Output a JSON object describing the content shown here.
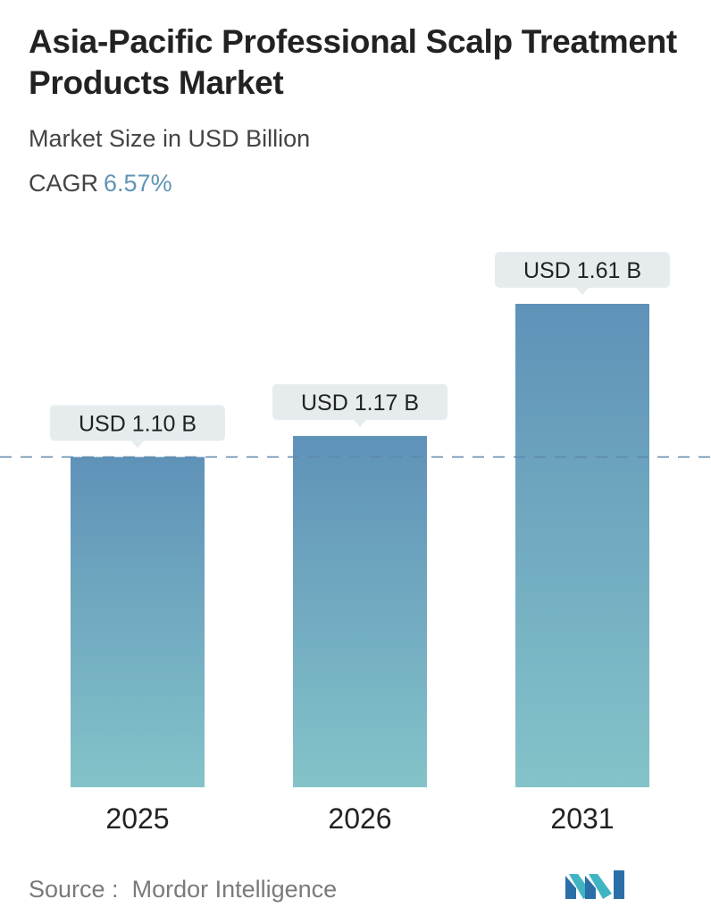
{
  "title": "Asia-Pacific Professional Scalp Treatment Products Market",
  "subtitle": "Market Size in USD Billion",
  "cagr": {
    "label": "CAGR",
    "value": "6.57%"
  },
  "colors": {
    "bar_top": "#5f92b8",
    "bar_bottom": "#84c3c9",
    "callout_bg": "#e6ecee",
    "reference_line": "#5d89ad"
  },
  "chart_data": {
    "type": "bar",
    "categories": [
      "2025",
      "2026",
      "2031"
    ],
    "values": [
      1.1,
      1.17,
      1.61
    ],
    "data_labels": [
      "USD 1.10 B",
      "USD 1.17 B",
      "USD 1.61 B"
    ],
    "ylim": [
      0,
      1.61
    ],
    "grid": false,
    "reference_line": {
      "value": 1.1,
      "style": "dashed"
    }
  },
  "source": {
    "label": "Source :",
    "name": "Mordor Intelligence"
  },
  "logo_icon": "mordor-intelligence-logo-icon"
}
